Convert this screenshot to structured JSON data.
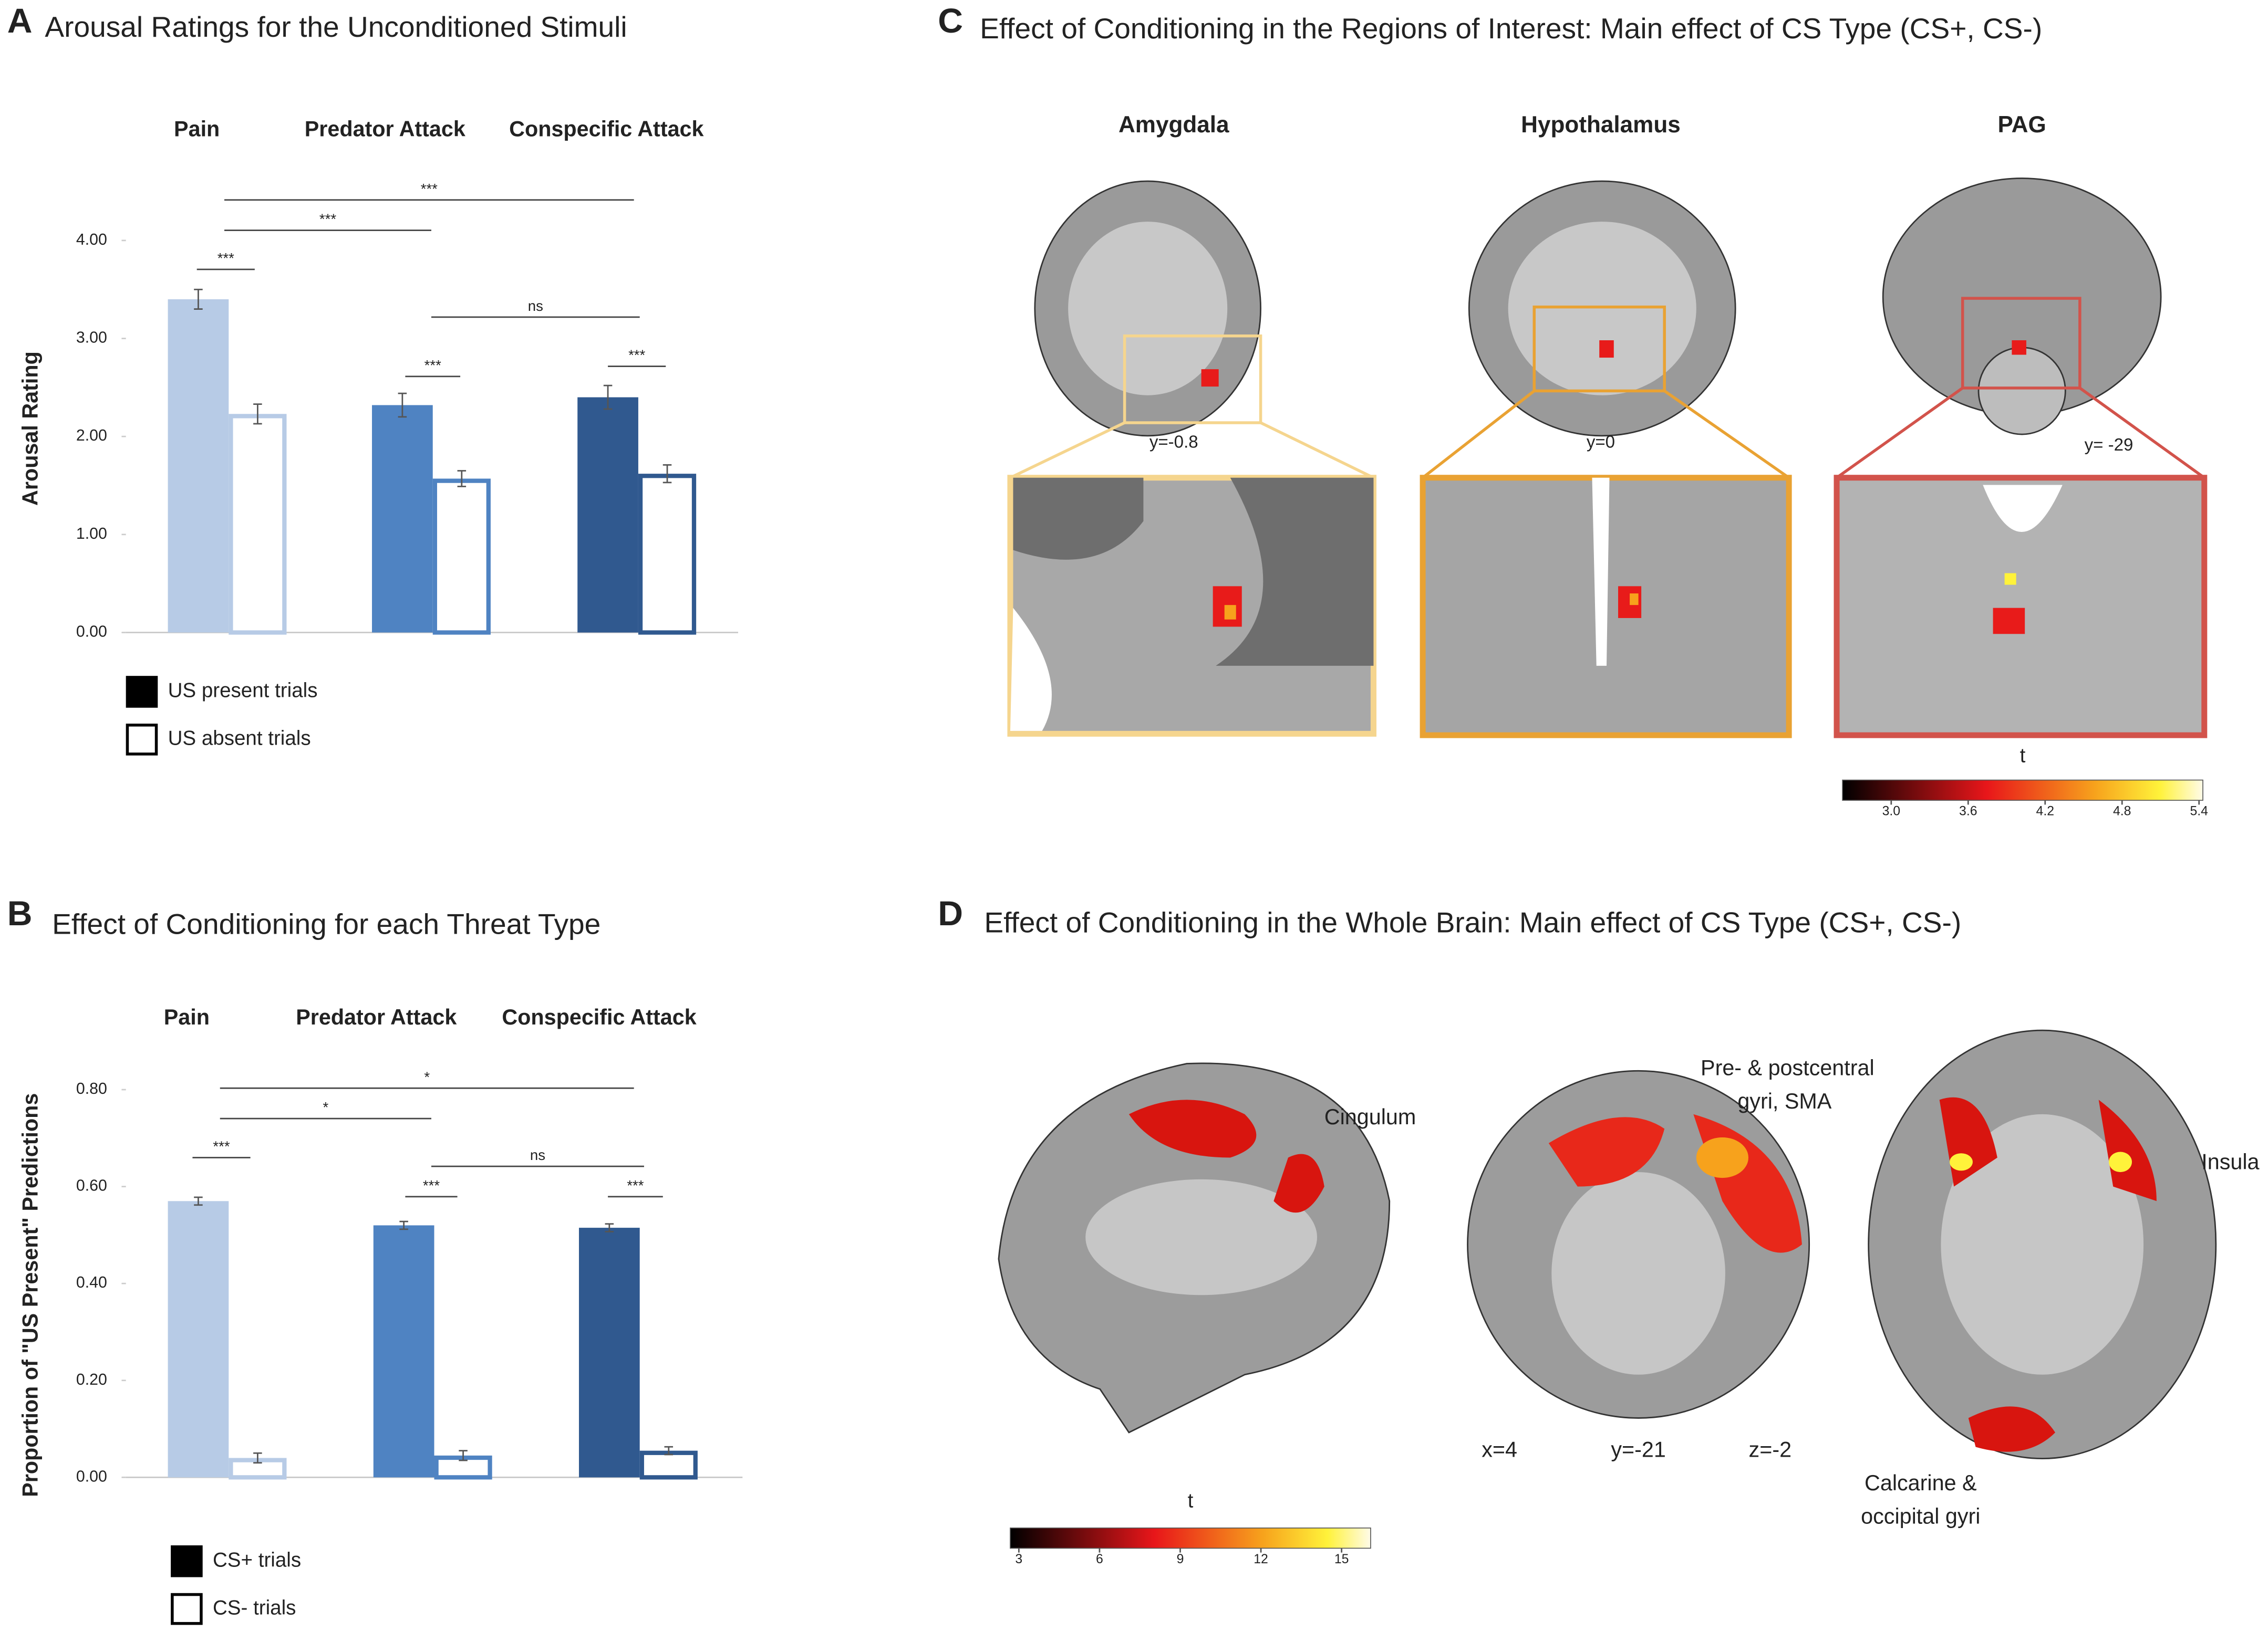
{
  "chart_data": [
    {
      "type": "bar",
      "panel": "A",
      "title": "Arousal Ratings for the Unconditioned Stimuli",
      "y_label": "Arousal Rating",
      "categories": [
        "Pain",
        "Predator Attack",
        "Conspecific Attack"
      ],
      "category_colors": [
        "#b7cbe6",
        "#4f83c2",
        "#30598f"
      ],
      "series": [
        {
          "name": "US present trials",
          "color": "#000000",
          "filled": true,
          "values": [
            3.4,
            2.32,
            2.4
          ],
          "errors": [
            0.1,
            0.12,
            0.12
          ]
        },
        {
          "name": "US absent trials",
          "color": "#ffffff",
          "filled": false,
          "values": [
            2.23,
            1.57,
            1.62
          ],
          "errors": [
            0.1,
            0.08,
            0.09
          ]
        }
      ],
      "ylim": [
        0,
        4
      ],
      "yticks": [
        {
          "value": 0,
          "label": "0.00"
        },
        {
          "value": 1,
          "label": "1.00"
        },
        {
          "value": 2,
          "label": "2.00"
        },
        {
          "value": 3,
          "label": "3.00"
        },
        {
          "value": 4,
          "label": "4.00"
        }
      ],
      "annotations": [
        "***",
        "***",
        "***",
        "ns",
        "***",
        "***"
      ]
    },
    {
      "type": "bar",
      "panel": "B",
      "title": "Effect of Conditioning for each Threat Type",
      "y_label": "Proportion of \"US Present\" Predictions",
      "categories": [
        "Pain",
        "Predator Attack",
        "Conspecific Attack"
      ],
      "category_colors": [
        "#b7cbe6",
        "#4f83c2",
        "#30598f"
      ],
      "series": [
        {
          "name": "CS+ trials",
          "color": "#000000",
          "filled": true,
          "values": [
            0.57,
            0.52,
            0.515
          ],
          "errors": [
            0.008,
            0.008,
            0.008
          ]
        },
        {
          "name": "CS- trials",
          "color": "#ffffff",
          "filled": false,
          "values": [
            0.04,
            0.045,
            0.055
          ],
          "errors": [
            0.01,
            0.01,
            0.008
          ]
        }
      ],
      "ylim": [
        0,
        0.8
      ],
      "yticks": [
        {
          "value": 0,
          "label": "0.00"
        },
        {
          "value": 0.2,
          "label": "0.20"
        },
        {
          "value": 0.4,
          "label": "0.40"
        },
        {
          "value": 0.6,
          "label": "0.60"
        },
        {
          "value": 0.8,
          "label": "0.80"
        }
      ],
      "annotations": [
        "***",
        "*",
        "*",
        "ns",
        "***",
        "***"
      ]
    }
  ],
  "panel_c": {
    "panel": "C",
    "title": "Effect of Conditioning in the Regions of Interest: Main effect of CS Type (CS+, CS-)",
    "regions": [
      {
        "name": "Amygdala",
        "color": "#f5d58e",
        "coord": "y=-0.8"
      },
      {
        "name": "Hypothalamus",
        "color": "#e9a233",
        "coord": "y=0"
      },
      {
        "name": "PAG",
        "color": "#d2534b",
        "coord": "y= -29"
      }
    ],
    "colorbar": {
      "label": "t",
      "lim": [
        2.62,
        5.43
      ],
      "ticks": [
        {
          "value": 3,
          "label": "3.0"
        },
        {
          "value": 3.6,
          "label": "3.6"
        },
        {
          "value": 4.2,
          "label": "4.2"
        },
        {
          "value": 4.8,
          "label": "4.8"
        },
        {
          "value": 5.4,
          "label": "5.4"
        }
      ]
    }
  },
  "panel_d": {
    "panel": "D",
    "title": "Effect of Conditioning in the Whole Brain: Main effect of CS Type (CS+, CS-)",
    "labels": {
      "cingulum": "Cingulum",
      "precentral_1": "Pre- & postcentral",
      "precentral_2": "gyri, SMA",
      "insula": "Insula",
      "calcarine_1": "Calcarine &",
      "calcarine_2": "occipital gyri"
    },
    "coords": [
      "x=4",
      "y=-21",
      "z=-2"
    ],
    "colorbar": {
      "label": "t",
      "lim": [
        2.68,
        16.08
      ],
      "ticks": [
        3,
        6,
        9,
        12,
        15
      ]
    }
  }
}
